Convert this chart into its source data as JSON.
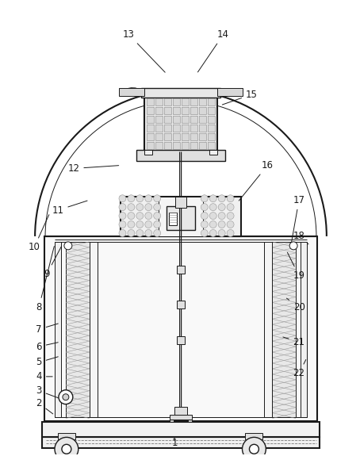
{
  "background_color": "#ffffff",
  "line_color": "#1a1a1a",
  "figsize": [
    4.54,
    5.75
  ],
  "dpi": 100,
  "annotation_data": [
    [
      "1",
      220,
      560,
      220,
      551
    ],
    [
      "2",
      48,
      510,
      68,
      525
    ],
    [
      "3",
      48,
      494,
      75,
      504
    ],
    [
      "4",
      48,
      476,
      68,
      476
    ],
    [
      "5",
      48,
      458,
      75,
      450
    ],
    [
      "6",
      48,
      438,
      75,
      432
    ],
    [
      "7",
      48,
      416,
      75,
      408
    ],
    [
      "8",
      48,
      388,
      68,
      308
    ],
    [
      "9",
      58,
      346,
      78,
      308
    ],
    [
      "10",
      42,
      312,
      62,
      268
    ],
    [
      "11",
      72,
      265,
      112,
      252
    ],
    [
      "12",
      92,
      212,
      152,
      208
    ],
    [
      "13",
      162,
      42,
      210,
      92
    ],
    [
      "14",
      282,
      42,
      248,
      92
    ],
    [
      "15",
      318,
      118,
      278,
      132
    ],
    [
      "16",
      338,
      208,
      300,
      255
    ],
    [
      "17",
      378,
      252,
      368,
      308
    ],
    [
      "18",
      378,
      298,
      390,
      308
    ],
    [
      "19",
      378,
      348,
      362,
      316
    ],
    [
      "20",
      378,
      388,
      360,
      375
    ],
    [
      "21",
      378,
      432,
      355,
      425
    ],
    [
      "22",
      378,
      472,
      388,
      452
    ]
  ]
}
